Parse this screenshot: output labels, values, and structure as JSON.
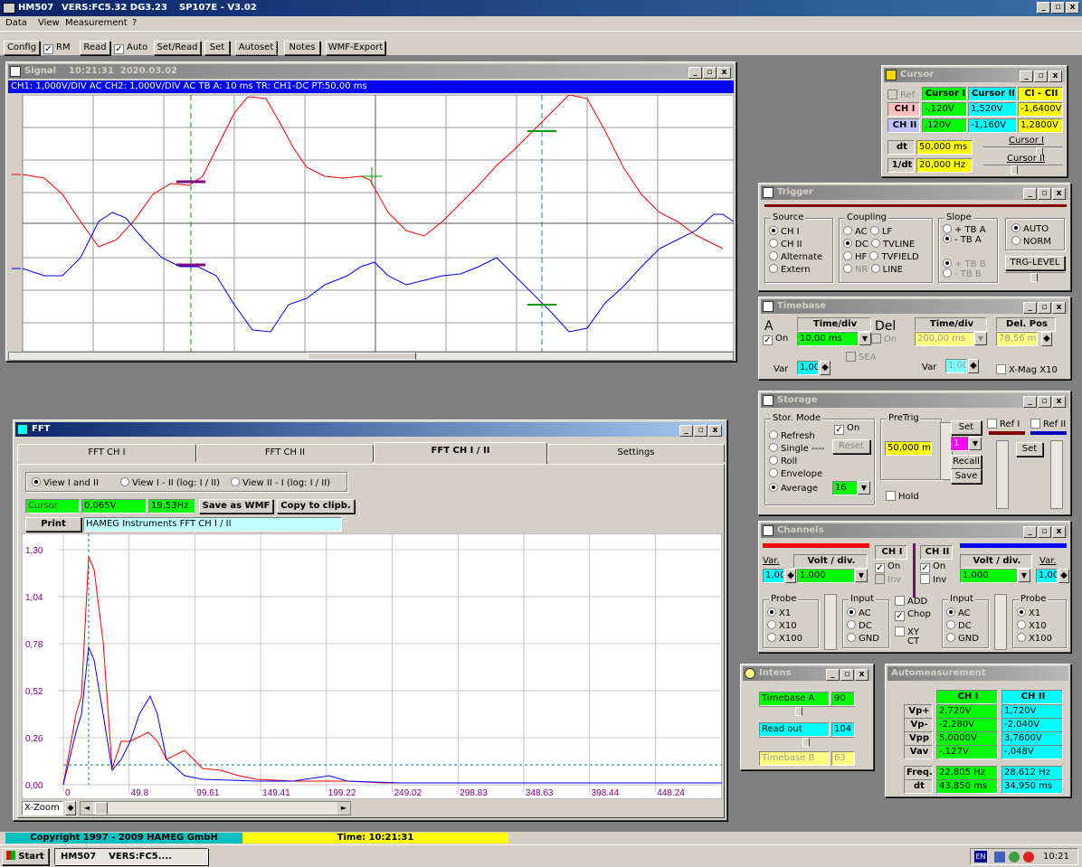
{
  "app": {
    "title": "HM507",
    "title2": "VERS:FC5.32 DG3.23",
    "title3": "SP107E - V3.02",
    "menu": [
      "Data",
      "View",
      "Measurement",
      "?"
    ]
  },
  "toolbar": {
    "config": "Config",
    "rm": "RM",
    "read": "Read",
    "auto": "Auto",
    "setread": "Set/Read",
    "set": "Set",
    "autoset": "Autoset",
    "notes": "Notes",
    "wmf": "WMF-Export"
  },
  "signal": {
    "title": "Signal",
    "time": "10:21:31",
    "date": "2020.03.02",
    "info": "CH1: 1,000V/DIV AC  CH2: 1,000V/DIV AC   TB A: 10 ms  TR: CH1-DC  PT:50,00 ms"
  },
  "cursor": {
    "title": "Cursor",
    "ref": "Ref",
    "h1": "Cursor I",
    "h2": "Cursor II",
    "h3": "CI - CII",
    "ch1": "CH I",
    "ch2": "CH II",
    "ch1_v1": "-,120V",
    "ch1_v2": "1,520V",
    "ch1_d": "-1,6400V",
    "ch2_v1": ",120V",
    "ch2_v2": "-1,160V",
    "ch2_d": "1,2800V",
    "dt": "dt",
    "dt_v": "50,000 ms",
    "inv": "1/dt",
    "inv_v": "20,000 Hz",
    "s1": "Cursor I",
    "s2": "Cursor II"
  },
  "trigger": {
    "title": "Trigger",
    "source": "Source",
    "src": [
      "CH I",
      "CH II",
      "Alternate",
      "Extern"
    ],
    "coupling": "Coupling",
    "cp": [
      "AC",
      "LF",
      "DC",
      "TVLINE",
      "HF",
      "TVFIELD",
      "NR",
      "LINE"
    ],
    "slope": "Slope",
    "sl1": "+ TB A",
    "sl2": "- TB A",
    "sl3": "+ TB B",
    "sl4": "- TB B",
    "auto": "AUTO",
    "norm": "NORM",
    "level": "TRG-LEVEL"
  },
  "timebase": {
    "title": "Timebase",
    "a": "A",
    "tdiv": "Time/div",
    "on": "On",
    "a_val": "10,00 ms",
    "del": "Del",
    "del_on": "On",
    "b_val": "200,00 ms",
    "delpos": "Del. Pos",
    "delpos_v": "78,56 ms",
    "var": "Var",
    "var_v": "1,00",
    "sea": "SEA",
    "var2_v": "1,00",
    "xmag": "X-Mag X10"
  },
  "storage": {
    "title": "Storage",
    "mode": "Stor. Mode",
    "modes": [
      "Refresh",
      "Single ----",
      "Roll",
      "Envelope",
      "Average"
    ],
    "on": "On",
    "reset": "Reset",
    "avg": "16",
    "pretrig": "PreTrig",
    "pt_v": "50,000 ms",
    "hold": "Hold",
    "set": "Set",
    "ref_sel": "1",
    "recall": "Recall",
    "save": "Save",
    "ref1": "Ref I",
    "ref2": "Ref II",
    "set2": "Set"
  },
  "channels": {
    "title": "Channels",
    "var": "Var.",
    "vdiv": "Volt / div.",
    "ch1": "CH I",
    "ch2": "CH II",
    "var1": "1,00",
    "v1": "1,000",
    "on1": "On",
    "inv1": "Inv",
    "on2": "On",
    "inv2": "Inv",
    "v2": "1,000",
    "var2": "1,00",
    "probe": "Probe",
    "input": "Input",
    "p": [
      "X1",
      "X10",
      "X100"
    ],
    "in": [
      "AC",
      "DC",
      "GND"
    ],
    "add": "ADD",
    "chop": "Chop",
    "xy": "XY",
    "ct": "CT"
  },
  "intens": {
    "title": "Intens",
    "tba": "Timebase A",
    "tba_v": "90",
    "ro": "Read out",
    "ro_v": "104",
    "tbb": "Timebase B",
    "tbb_v": "63"
  },
  "autom": {
    "title": "Automeasurement",
    "ch1": "CH I",
    "ch2": "CH II",
    "rows": [
      {
        "l": "Vp+",
        "a": "2,720V",
        "b": "1,720V"
      },
      {
        "l": "Vp-",
        "a": "-2,280V",
        "b": "-2,040V"
      },
      {
        "l": "Vpp",
        "a": "5,0000V",
        "b": "3,7600V"
      },
      {
        "l": "Vav",
        "a": "-,127V",
        "b": "-,048V"
      }
    ],
    "freq": "Freq.",
    "freq_a": "22,805 Hz",
    "freq_b": "28,612 Hz",
    "dt": "dt",
    "dt_a": "43,850 ms",
    "dt_b": "34,950 ms"
  },
  "fft": {
    "title": "FFT",
    "tabs": [
      "FFT CH I",
      "FFT CH II",
      "FFT CH I / II",
      "Settings"
    ],
    "v1": "View I and II",
    "v2": "View I - II  (log: I / II)",
    "v3": "View II - I  (log: I / II)",
    "cursor": "Cursor",
    "cv": "0,065V",
    "cf": "19,53Hz",
    "wmf": "Save as WMF",
    "clip": "Copy to clipb.",
    "print": "Print",
    "note": "HAMEG Instruments FFT CH I / II",
    "yt": [
      "1,30",
      "1,04",
      "0,78",
      "0,52",
      "0,26",
      "0,00"
    ],
    "xt": [
      "0",
      "49.8",
      "99.61",
      "149.41",
      "199.22",
      "249.02",
      "298.83",
      "348.63",
      "398.44",
      "448.24"
    ],
    "xzoom": "X-Zoom =",
    "xz_v": "20"
  },
  "status": {
    "copy": "Copyright 1997 - 2009 HAMEG GmbH",
    "time": "Time: 10:21:31"
  },
  "taskbar": {
    "start": "Start",
    "t1": "HM507",
    "t2": "VERS:FC5....",
    "lang": "EN",
    "clock": "10:21"
  },
  "chart_data": {
    "type": "line",
    "x": [
      0,
      49.8,
      99.61,
      149.41,
      199.22,
      249.02,
      298.83,
      348.63,
      398.44,
      448.24
    ],
    "series": [
      {
        "values": [
          0,
          0.36,
          0.16,
          0.03,
          0.01,
          0.01,
          0,
          0,
          0,
          0
        ]
      },
      {
        "values": [
          0,
          0.52,
          0.05,
          0.01,
          0.02,
          0.01,
          0,
          0,
          0,
          0
        ]
      }
    ],
    "ylim": [
      0,
      1.3
    ]
  },
  "colors": {
    "ch1": "#ff0000",
    "ch2": "#0000ff",
    "blue_bar": "#0000ff",
    "yellow": "#ffff00",
    "green": "#00ff00",
    "cyan": "#00ffff",
    "magenta": "#ff00ff",
    "pink": "#ffc0c0"
  }
}
